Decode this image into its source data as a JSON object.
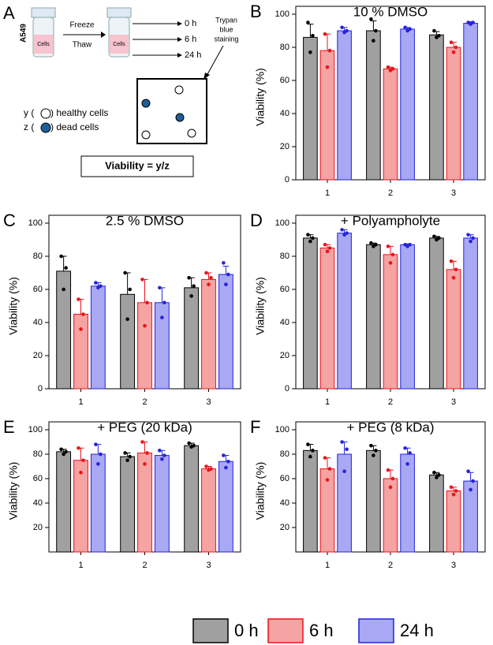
{
  "schematic": {
    "panel_label": "A",
    "cell_line": "A549",
    "tube_labels": [
      "Cells",
      "Cells"
    ],
    "steps": [
      "Freeze",
      "Thaw"
    ],
    "times": [
      "0 h",
      "6 h",
      "24 h"
    ],
    "stain": [
      "Trypan",
      "blue",
      "staining"
    ],
    "legend": [
      {
        "before": "y (",
        "after": ") healthy cells"
      },
      {
        "before": "z (",
        "after": ") dead cells"
      }
    ],
    "formula": "Viability = y/z"
  },
  "chart_data": [
    {
      "type": "bar",
      "panel_label": "B",
      "title": "10 % DMSO",
      "ylabel": "Viability (%)",
      "categories": [
        "1",
        "2",
        "3"
      ],
      "ylim": [
        0,
        100
      ],
      "yticks": [
        0,
        20,
        40,
        60,
        80,
        100
      ],
      "series": [
        {
          "name": "0 h",
          "color": "#a0a0a0",
          "edgecolor": "#000000",
          "values": [
            86,
            90,
            87.5
          ],
          "errors": [
            8,
            6,
            2
          ],
          "points": [
            [
              95,
              77,
              87
            ],
            [
              97,
              84,
              90
            ],
            [
              90,
              86,
              87
            ]
          ]
        },
        {
          "name": "6 h",
          "color": "#f5a3a3",
          "edgecolor": "#e8141b",
          "values": [
            78,
            67,
            80
          ],
          "errors": [
            10,
            1,
            3
          ],
          "points": [
            [
              88,
              68,
              78
            ],
            [
              68,
              66,
              67
            ],
            [
              83,
              77,
              80
            ]
          ]
        },
        {
          "name": "24 h",
          "color": "#a8a8f5",
          "edgecolor": "#2424d8",
          "values": [
            90,
            91,
            94.5
          ],
          "errors": [
            2,
            1,
            1
          ],
          "points": [
            [
              92,
              89,
              90
            ],
            [
              92,
              90,
              91
            ],
            [
              95,
              94,
              95
            ]
          ]
        }
      ]
    },
    {
      "type": "bar",
      "panel_label": "C",
      "title": "2.5 % DMSO",
      "ylabel": "Viability (%)",
      "categories": [
        "1",
        "2",
        "3"
      ],
      "ylim": [
        0,
        100
      ],
      "yticks": [
        0,
        20,
        40,
        60,
        80,
        100
      ],
      "series": [
        {
          "name": "0 h",
          "color": "#a0a0a0",
          "edgecolor": "#000000",
          "values": [
            71,
            57,
            61
          ],
          "errors": [
            9,
            13,
            6
          ],
          "points": [
            [
              80,
              60,
              73
            ],
            [
              70,
              42,
              60
            ],
            [
              67,
              56,
              62
            ]
          ]
        },
        {
          "name": "6 h",
          "color": "#f5a3a3",
          "edgecolor": "#e8141b",
          "values": [
            45,
            52,
            66
          ],
          "errors": [
            9,
            14,
            4
          ],
          "points": [
            [
              54,
              36,
              45
            ],
            [
              66,
              38,
              52
            ],
            [
              70,
              63,
              67
            ]
          ]
        },
        {
          "name": "24 h",
          "color": "#a8a8f5",
          "edgecolor": "#2424d8",
          "values": [
            62,
            52,
            69
          ],
          "errors": [
            2,
            9,
            5
          ],
          "points": [
            [
              64,
              61,
              62
            ],
            [
              61,
              43,
              52
            ],
            [
              76,
              63,
              69
            ]
          ]
        }
      ]
    },
    {
      "type": "bar",
      "panel_label": "D",
      "title": "+ Polyampholyte",
      "ylabel": "Viability (%)",
      "categories": [
        "1",
        "2",
        "3"
      ],
      "ylim": [
        0,
        100
      ],
      "yticks": [
        0,
        20,
        40,
        60,
        80,
        100
      ],
      "series": [
        {
          "name": "0 h",
          "color": "#a0a0a0",
          "edgecolor": "#000000",
          "values": [
            91,
            87,
            91
          ],
          "errors": [
            2,
            1,
            1
          ],
          "points": [
            [
              93,
              89,
              91
            ],
            [
              88,
              86,
              87
            ],
            [
              92,
              90,
              91
            ]
          ]
        },
        {
          "name": "6 h",
          "color": "#f5a3a3",
          "edgecolor": "#e8141b",
          "values": [
            85,
            81,
            72
          ],
          "errors": [
            2,
            5,
            5
          ],
          "points": [
            [
              87,
              83,
              85
            ],
            [
              86,
              76,
              81
            ],
            [
              77,
              67,
              72
            ]
          ]
        },
        {
          "name": "24 h",
          "color": "#a8a8f5",
          "edgecolor": "#2424d8",
          "values": [
            94,
            87,
            91
          ],
          "errors": [
            2,
            0.5,
            2
          ],
          "points": [
            [
              96,
              93,
              94
            ],
            [
              87,
              86,
              87
            ],
            [
              93,
              89,
              91
            ]
          ]
        }
      ]
    },
    {
      "type": "bar",
      "panel_label": "E",
      "title": "+ PEG (20 kDa)",
      "ylabel": "Viability (%)",
      "categories": [
        "1",
        "2",
        "3"
      ],
      "ylim": [
        0,
        100
      ],
      "yticks": [
        20,
        40,
        60,
        80,
        100
      ],
      "series": [
        {
          "name": "0 h",
          "color": "#a0a0a0",
          "edgecolor": "#000000",
          "values": [
            82,
            78,
            87
          ],
          "errors": [
            2,
            3,
            2
          ],
          "points": [
            [
              84,
              80,
              82
            ],
            [
              81,
              75,
              78
            ],
            [
              89,
              86,
              87
            ]
          ]
        },
        {
          "name": "6 h",
          "color": "#f5a3a3",
          "edgecolor": "#e8141b",
          "values": [
            75,
            81,
            68
          ],
          "errors": [
            10,
            9,
            2
          ],
          "points": [
            [
              85,
              65,
              75
            ],
            [
              90,
              72,
              81
            ],
            [
              70,
              67,
              68
            ]
          ]
        },
        {
          "name": "24 h",
          "color": "#a8a8f5",
          "edgecolor": "#2424d8",
          "values": [
            80,
            79,
            74
          ],
          "errors": [
            8,
            4,
            5
          ],
          "points": [
            [
              88,
              72,
              80
            ],
            [
              83,
              76,
              79
            ],
            [
              79,
              69,
              74
            ]
          ]
        }
      ]
    },
    {
      "type": "bar",
      "panel_label": "F",
      "title": "+ PEG (8 kDa)",
      "ylabel": "Viability (%)",
      "categories": [
        "1",
        "2",
        "3"
      ],
      "ylim": [
        0,
        100
      ],
      "yticks": [
        20,
        40,
        60,
        80,
        100
      ],
      "series": [
        {
          "name": "0 h",
          "color": "#a0a0a0",
          "edgecolor": "#000000",
          "values": [
            83,
            83,
            63
          ],
          "errors": [
            5,
            4,
            2
          ],
          "points": [
            [
              88,
              78,
              83
            ],
            [
              87,
              79,
              83
            ],
            [
              65,
              61,
              63
            ]
          ]
        },
        {
          "name": "6 h",
          "color": "#f5a3a3",
          "edgecolor": "#e8141b",
          "values": [
            68,
            60,
            50
          ],
          "errors": [
            9,
            7,
            3
          ],
          "points": [
            [
              77,
              59,
              68
            ],
            [
              67,
              53,
              60
            ],
            [
              53,
              47,
              50
            ]
          ]
        },
        {
          "name": "24 h",
          "color": "#a8a8f5",
          "edgecolor": "#2424d8",
          "values": [
            80,
            80,
            58
          ],
          "errors": [
            10,
            5,
            7
          ],
          "points": [
            [
              90,
              66,
              84
            ],
            [
              85,
              72,
              81
            ],
            [
              66,
              51,
              58
            ]
          ]
        }
      ]
    }
  ]
}
